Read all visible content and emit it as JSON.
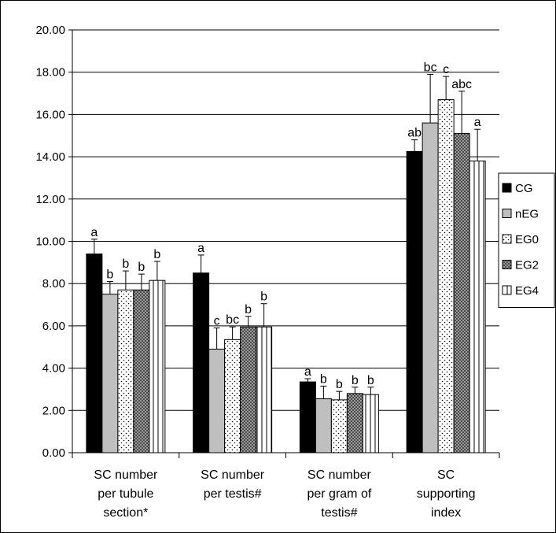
{
  "chart_data": {
    "type": "bar",
    "categories": [
      [
        "SC number",
        "per tubule",
        "section*"
      ],
      [
        "SC number",
        "per testis#"
      ],
      [
        "SC number",
        "per gram of",
        "testis#"
      ],
      [
        "SC",
        "supporting",
        "index"
      ]
    ],
    "ylim": [
      0,
      20
    ],
    "yticks": [
      "0.00",
      "2.00",
      "4.00",
      "6.00",
      "8.00",
      "10.00",
      "12.00",
      "14.00",
      "16.00",
      "18.00",
      "20.00"
    ],
    "grid": true,
    "legend_position": "right",
    "series": [
      {
        "name": "CG",
        "pattern": "solid-black",
        "values": [
          9.4,
          8.5,
          3.35,
          14.25
        ],
        "errors": [
          0.7,
          0.85,
          0.15,
          0.55
        ],
        "labels": [
          "a",
          "a",
          "a",
          "ab"
        ]
      },
      {
        "name": "nEG",
        "pattern": "solid-gray",
        "values": [
          7.5,
          4.9,
          2.55,
          15.6
        ],
        "errors": [
          0.6,
          1.0,
          0.6,
          2.3
        ],
        "labels": [
          "b",
          "c",
          "b",
          "bc"
        ]
      },
      {
        "name": "EG0",
        "pattern": "dots",
        "values": [
          7.7,
          5.35,
          2.5,
          16.7
        ],
        "errors": [
          0.9,
          0.6,
          0.4,
          1.1
        ],
        "labels": [
          "b",
          "bc",
          "b",
          "c"
        ]
      },
      {
        "name": "EG2",
        "pattern": "crosshatch",
        "values": [
          7.7,
          5.95,
          2.8,
          15.1
        ],
        "errors": [
          0.75,
          0.5,
          0.3,
          2.0
        ],
        "labels": [
          "b",
          "b",
          "b",
          "abc"
        ]
      },
      {
        "name": "EG4",
        "pattern": "vertical",
        "values": [
          8.15,
          5.95,
          2.75,
          13.8
        ],
        "errors": [
          0.9,
          1.1,
          0.35,
          1.5
        ],
        "labels": [
          "b",
          "b",
          "b",
          "a"
        ]
      }
    ],
    "colors": {
      "CG": "#000000",
      "nEG": "#bfbfbf",
      "EG0": "#ffffff",
      "EG2": "#808080",
      "EG4": "#ffffff"
    }
  }
}
